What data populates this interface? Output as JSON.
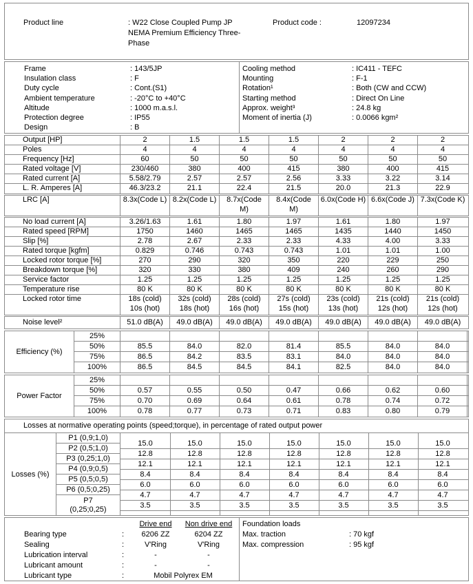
{
  "product": {
    "line_label": "Product line",
    "line_value": ": W22 Close Coupled Pump JP\nNEMA Premium Efficiency Three-\nPhase",
    "code_label": "Product code :",
    "code_value": "12097234"
  },
  "specs": {
    "left": [
      {
        "label": "Frame",
        "value": ": 143/5JP"
      },
      {
        "label": "Insulation class",
        "value": ": F"
      },
      {
        "label": "Duty cycle",
        "value": ": Cont.(S1)"
      },
      {
        "label": "Ambient temperature",
        "value": ": -20°C to +40°C"
      },
      {
        "label": "Altitude",
        "value": ": 1000 m.a.s.l."
      },
      {
        "label": "Protection degree",
        "value": ": IP55"
      },
      {
        "label": "Design",
        "value": ": B"
      }
    ],
    "right": [
      {
        "label": "Cooling method",
        "value": ": IC411 - TEFC"
      },
      {
        "label": "Mounting",
        "value": ": F-1"
      },
      {
        "label": "Rotation¹",
        "value": ": Both (CW and CCW)"
      },
      {
        "label": "Starting method",
        "value": ": Direct On Line"
      },
      {
        "label": "Approx. weight³",
        "value": ": 24.8 kg"
      },
      {
        "label": "Moment of inertia (J)",
        "value": ": 0.0066 kgm²"
      }
    ]
  },
  "ratings_a": [
    {
      "label": "Output [HP]",
      "values": [
        "2",
        "1.5",
        "1.5",
        "1.5",
        "2",
        "2",
        "2"
      ]
    },
    {
      "label": "Poles",
      "values": [
        "4",
        "4",
        "4",
        "4",
        "4",
        "4",
        "4"
      ]
    },
    {
      "label": "Frequency [Hz]",
      "values": [
        "60",
        "50",
        "50",
        "50",
        "50",
        "50",
        "50"
      ]
    },
    {
      "label": "Rated voltage [V]",
      "values": [
        "230/460",
        "380",
        "400",
        "415",
        "380",
        "400",
        "415"
      ]
    },
    {
      "label": "Rated current [A]",
      "values": [
        "5.58/2.79",
        "2.57",
        "2.57",
        "2.56",
        "3.33",
        "3.22",
        "3.14"
      ]
    },
    {
      "label": "L. R. Amperes [A]",
      "values": [
        "46.3/23.2",
        "21.1",
        "22.4",
        "21.5",
        "20.0",
        "21.3",
        "22.9"
      ]
    }
  ],
  "ratings_lrc": [
    {
      "label": "LRC [A]",
      "tall": true,
      "values": [
        "8.3x(Code L)",
        "8.2x(Code L)",
        "8.7x(Code\nM)",
        "8.4x(Code\nM)",
        "6.0x(Code H)",
        "6.6x(Code J)",
        "7.3x(Code K)"
      ]
    }
  ],
  "ratings_b": [
    {
      "label": "No load current [A]",
      "values": [
        "3.26/1.63",
        "1.61",
        "1.80",
        "1.97",
        "1.61",
        "1.80",
        "1.97"
      ]
    },
    {
      "label": "Rated speed [RPM]",
      "values": [
        "1750",
        "1460",
        "1465",
        "1465",
        "1435",
        "1440",
        "1450"
      ]
    },
    {
      "label": "Slip [%]",
      "values": [
        "2.78",
        "2.67",
        "2.33",
        "2.33",
        "4.33",
        "4.00",
        "3.33"
      ]
    },
    {
      "label": "Rated torque [kgfm]",
      "values": [
        "0.829",
        "0.746",
        "0.743",
        "0.743",
        "1.01",
        "1.01",
        "1.00"
      ]
    },
    {
      "label": "Locked rotor torque [%]",
      "values": [
        "270",
        "290",
        "320",
        "350",
        "220",
        "229",
        "250"
      ]
    },
    {
      "label": "Breakdown torque [%]",
      "values": [
        "320",
        "330",
        "380",
        "409",
        "240",
        "260",
        "290"
      ]
    },
    {
      "label": "Service factor",
      "values": [
        "1.25",
        "1.25",
        "1.25",
        "1.25",
        "1.25",
        "1.25",
        "1.25"
      ]
    },
    {
      "label": "Temperature rise",
      "values": [
        "80 K",
        "80 K",
        "80 K",
        "80 K",
        "80 K",
        "80 K",
        "80 K"
      ]
    },
    {
      "label": "Locked rotor time",
      "tall": true,
      "values": [
        "18s (cold)\n10s (hot)",
        "32s (cold)\n18s (hot)",
        "28s (cold)\n16s (hot)",
        "27s (cold)\n15s (hot)",
        "23s (cold)\n13s (hot)",
        "21s (cold)\n12s (hot)",
        "21s (cold)\n12s (hot)"
      ]
    }
  ],
  "ratings_noise": [
    {
      "label": "Noise level²",
      "h17": true,
      "values": [
        "51.0 dB(A)",
        "49.0 dB(A)",
        "49.0 dB(A)",
        "49.0 dB(A)",
        "49.0 dB(A)",
        "49.0 dB(A)",
        "49.0 dB(A)"
      ]
    }
  ],
  "efficiency": {
    "label": "Efficiency (%)",
    "rows": [
      {
        "pct": "25%",
        "values": [
          "",
          "",
          "",
          "",
          "",
          "",
          ""
        ]
      },
      {
        "pct": "50%",
        "values": [
          "85.5",
          "84.0",
          "82.0",
          "81.4",
          "85.5",
          "84.0",
          "84.0"
        ]
      },
      {
        "pct": "75%",
        "values": [
          "86.5",
          "84.2",
          "83.5",
          "83.1",
          "84.0",
          "84.0",
          "84.0"
        ]
      },
      {
        "pct": "100%",
        "values": [
          "86.5",
          "84.5",
          "84.5",
          "84.1",
          "82.5",
          "84.0",
          "84.0"
        ]
      }
    ]
  },
  "power_factor": {
    "label": "Power Factor",
    "rows": [
      {
        "pct": "25%",
        "values": [
          "",
          "",
          "",
          "",
          "",
          "",
          ""
        ]
      },
      {
        "pct": "50%",
        "values": [
          "0.57",
          "0.55",
          "0.50",
          "0.47",
          "0.66",
          "0.62",
          "0.60"
        ]
      },
      {
        "pct": "75%",
        "values": [
          "0.70",
          "0.69",
          "0.64",
          "0.61",
          "0.78",
          "0.74",
          "0.72"
        ]
      },
      {
        "pct": "100%",
        "values": [
          "0.78",
          "0.77",
          "0.73",
          "0.71",
          "0.83",
          "0.80",
          "0.79"
        ]
      }
    ]
  },
  "losses": {
    "title": "Losses at normative operating points (speed;torque), in percentage of rated output power",
    "label": "Losses (%)",
    "rows": [
      {
        "point": "P1 (0,9;1,0)",
        "values": [
          "15.0",
          "15.0",
          "15.0",
          "15.0",
          "15.0",
          "15.0",
          "15.0"
        ]
      },
      {
        "point": "P2 (0,5;1,0)",
        "values": [
          "12.8",
          "12.8",
          "12.8",
          "12.8",
          "12.8",
          "12.8",
          "12.8"
        ]
      },
      {
        "point": "P3 (0,25;1,0)",
        "values": [
          "12.1",
          "12.1",
          "12.1",
          "12.1",
          "12.1",
          "12.1",
          "12.1"
        ]
      },
      {
        "point": "P4 (0,9;0,5)",
        "values": [
          "8.4",
          "8.4",
          "8.4",
          "8.4",
          "8.4",
          "8.4",
          "8.4"
        ]
      },
      {
        "point": "P5 (0,5;0,5)",
        "values": [
          "6.0",
          "6.0",
          "6.0",
          "6.0",
          "6.0",
          "6.0",
          "6.0"
        ]
      },
      {
        "point": "P6 (0,5;0,25)",
        "values": [
          "4.7",
          "4.7",
          "4.7",
          "4.7",
          "4.7",
          "4.7",
          "4.7"
        ]
      },
      {
        "point": "P7\n(0,25;0,25)",
        "values": [
          "3.5",
          "3.5",
          "3.5",
          "3.5",
          "3.5",
          "3.5",
          "3.5"
        ]
      }
    ]
  },
  "bearings": {
    "colon": ":",
    "col_headers": [
      "Drive end",
      "Non drive end"
    ],
    "rows": [
      {
        "label": "Bearing type",
        "de": "6206 ZZ",
        "nde": "6204 ZZ"
      },
      {
        "label": "Sealing",
        "de": "V'Ring",
        "nde": "V'Ring"
      },
      {
        "label": "Lubrication interval",
        "de": "-",
        "nde": "-"
      },
      {
        "label": "Lubricant amount",
        "de": "-",
        "nde": "-"
      },
      {
        "label": "Lubricant type",
        "span": "Mobil Polyrex EM"
      }
    ]
  },
  "foundation": {
    "title": "Foundation loads",
    "rows": [
      {
        "label": "Max. traction",
        "value": ": 70 kgf"
      },
      {
        "label": "Max. compression",
        "value": ": 95 kgf"
      }
    ]
  }
}
